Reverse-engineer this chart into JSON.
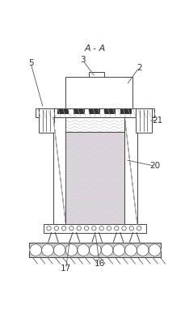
{
  "title": "A - A",
  "bg_color": "#ffffff",
  "line_color": "#444444",
  "fill_pink": "#ddd8dd",
  "hatch_color": "#999999",
  "labels": [
    "2",
    "3",
    "5",
    "16",
    "17",
    "20",
    "21"
  ]
}
